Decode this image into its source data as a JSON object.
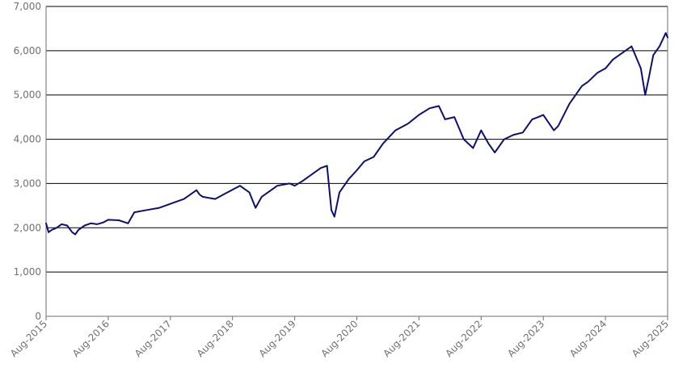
{
  "chart_data": {
    "type": "line",
    "title": "",
    "xlabel": "",
    "ylabel": "",
    "ylim": [
      0,
      7000
    ],
    "y_ticks": [
      "0",
      "1,000",
      "2,000",
      "3,000",
      "4,000",
      "5,000",
      "6,000",
      "7,000"
    ],
    "x_ticks": [
      "Aug-2015",
      "Aug-2016",
      "Aug-2017",
      "Aug-2018",
      "Aug-2019",
      "Aug-2020",
      "Aug-2021",
      "Aug-2022",
      "Aug-2023",
      "Aug-2024",
      "Aug-2025"
    ],
    "grid": "horizontal",
    "line_color": "#0f0f6e",
    "series": [
      {
        "x": [
          2015.58,
          2015.62,
          2015.67,
          2015.75,
          2015.83,
          2015.92,
          2016.0,
          2016.05,
          2016.1,
          2016.2,
          2016.3,
          2016.4,
          2016.5,
          2016.58,
          2016.75,
          2016.9,
          2017.0,
          2017.2,
          2017.4,
          2017.6,
          2017.8,
          2018.0,
          2018.05,
          2018.1,
          2018.3,
          2018.5,
          2018.7,
          2018.85,
          2018.95,
          2019.05,
          2019.3,
          2019.5,
          2019.58,
          2019.7,
          2019.9,
          2020.0,
          2020.1,
          2020.17,
          2020.22,
          2020.3,
          2020.45,
          2020.58,
          2020.7,
          2020.85,
          2021.0,
          2021.2,
          2021.4,
          2021.58,
          2021.75,
          2021.9,
          2022.0,
          2022.15,
          2022.3,
          2022.45,
          2022.58,
          2022.7,
          2022.8,
          2022.95,
          2023.1,
          2023.25,
          2023.4,
          2023.5,
          2023.58,
          2023.75,
          2023.82,
          2024.0,
          2024.2,
          2024.3,
          2024.45,
          2024.58,
          2024.7,
          2024.9,
          2025.0,
          2025.15,
          2025.22,
          2025.28,
          2025.35,
          2025.45,
          2025.55,
          2025.58
        ],
        "y": [
          2100,
          1900,
          1950,
          2000,
          2080,
          2050,
          1900,
          1850,
          1950,
          2050,
          2100,
          2080,
          2120,
          2180,
          2170,
          2100,
          2350,
          2400,
          2450,
          2550,
          2650,
          2850,
          2750,
          2700,
          2650,
          2800,
          2950,
          2800,
          2450,
          2700,
          2950,
          3000,
          2950,
          3050,
          3250,
          3350,
          3400,
          2400,
          2250,
          2800,
          3100,
          3300,
          3500,
          3600,
          3900,
          4200,
          4350,
          4550,
          4700,
          4750,
          4450,
          4500,
          4000,
          3800,
          4200,
          3900,
          3700,
          4000,
          4100,
          4150,
          4450,
          4500,
          4550,
          4200,
          4300,
          4800,
          5200,
          5300,
          5500,
          5600,
          5800,
          6000,
          6100,
          5600,
          5000,
          5400,
          5900,
          6100,
          6400,
          6300
        ]
      }
    ]
  }
}
